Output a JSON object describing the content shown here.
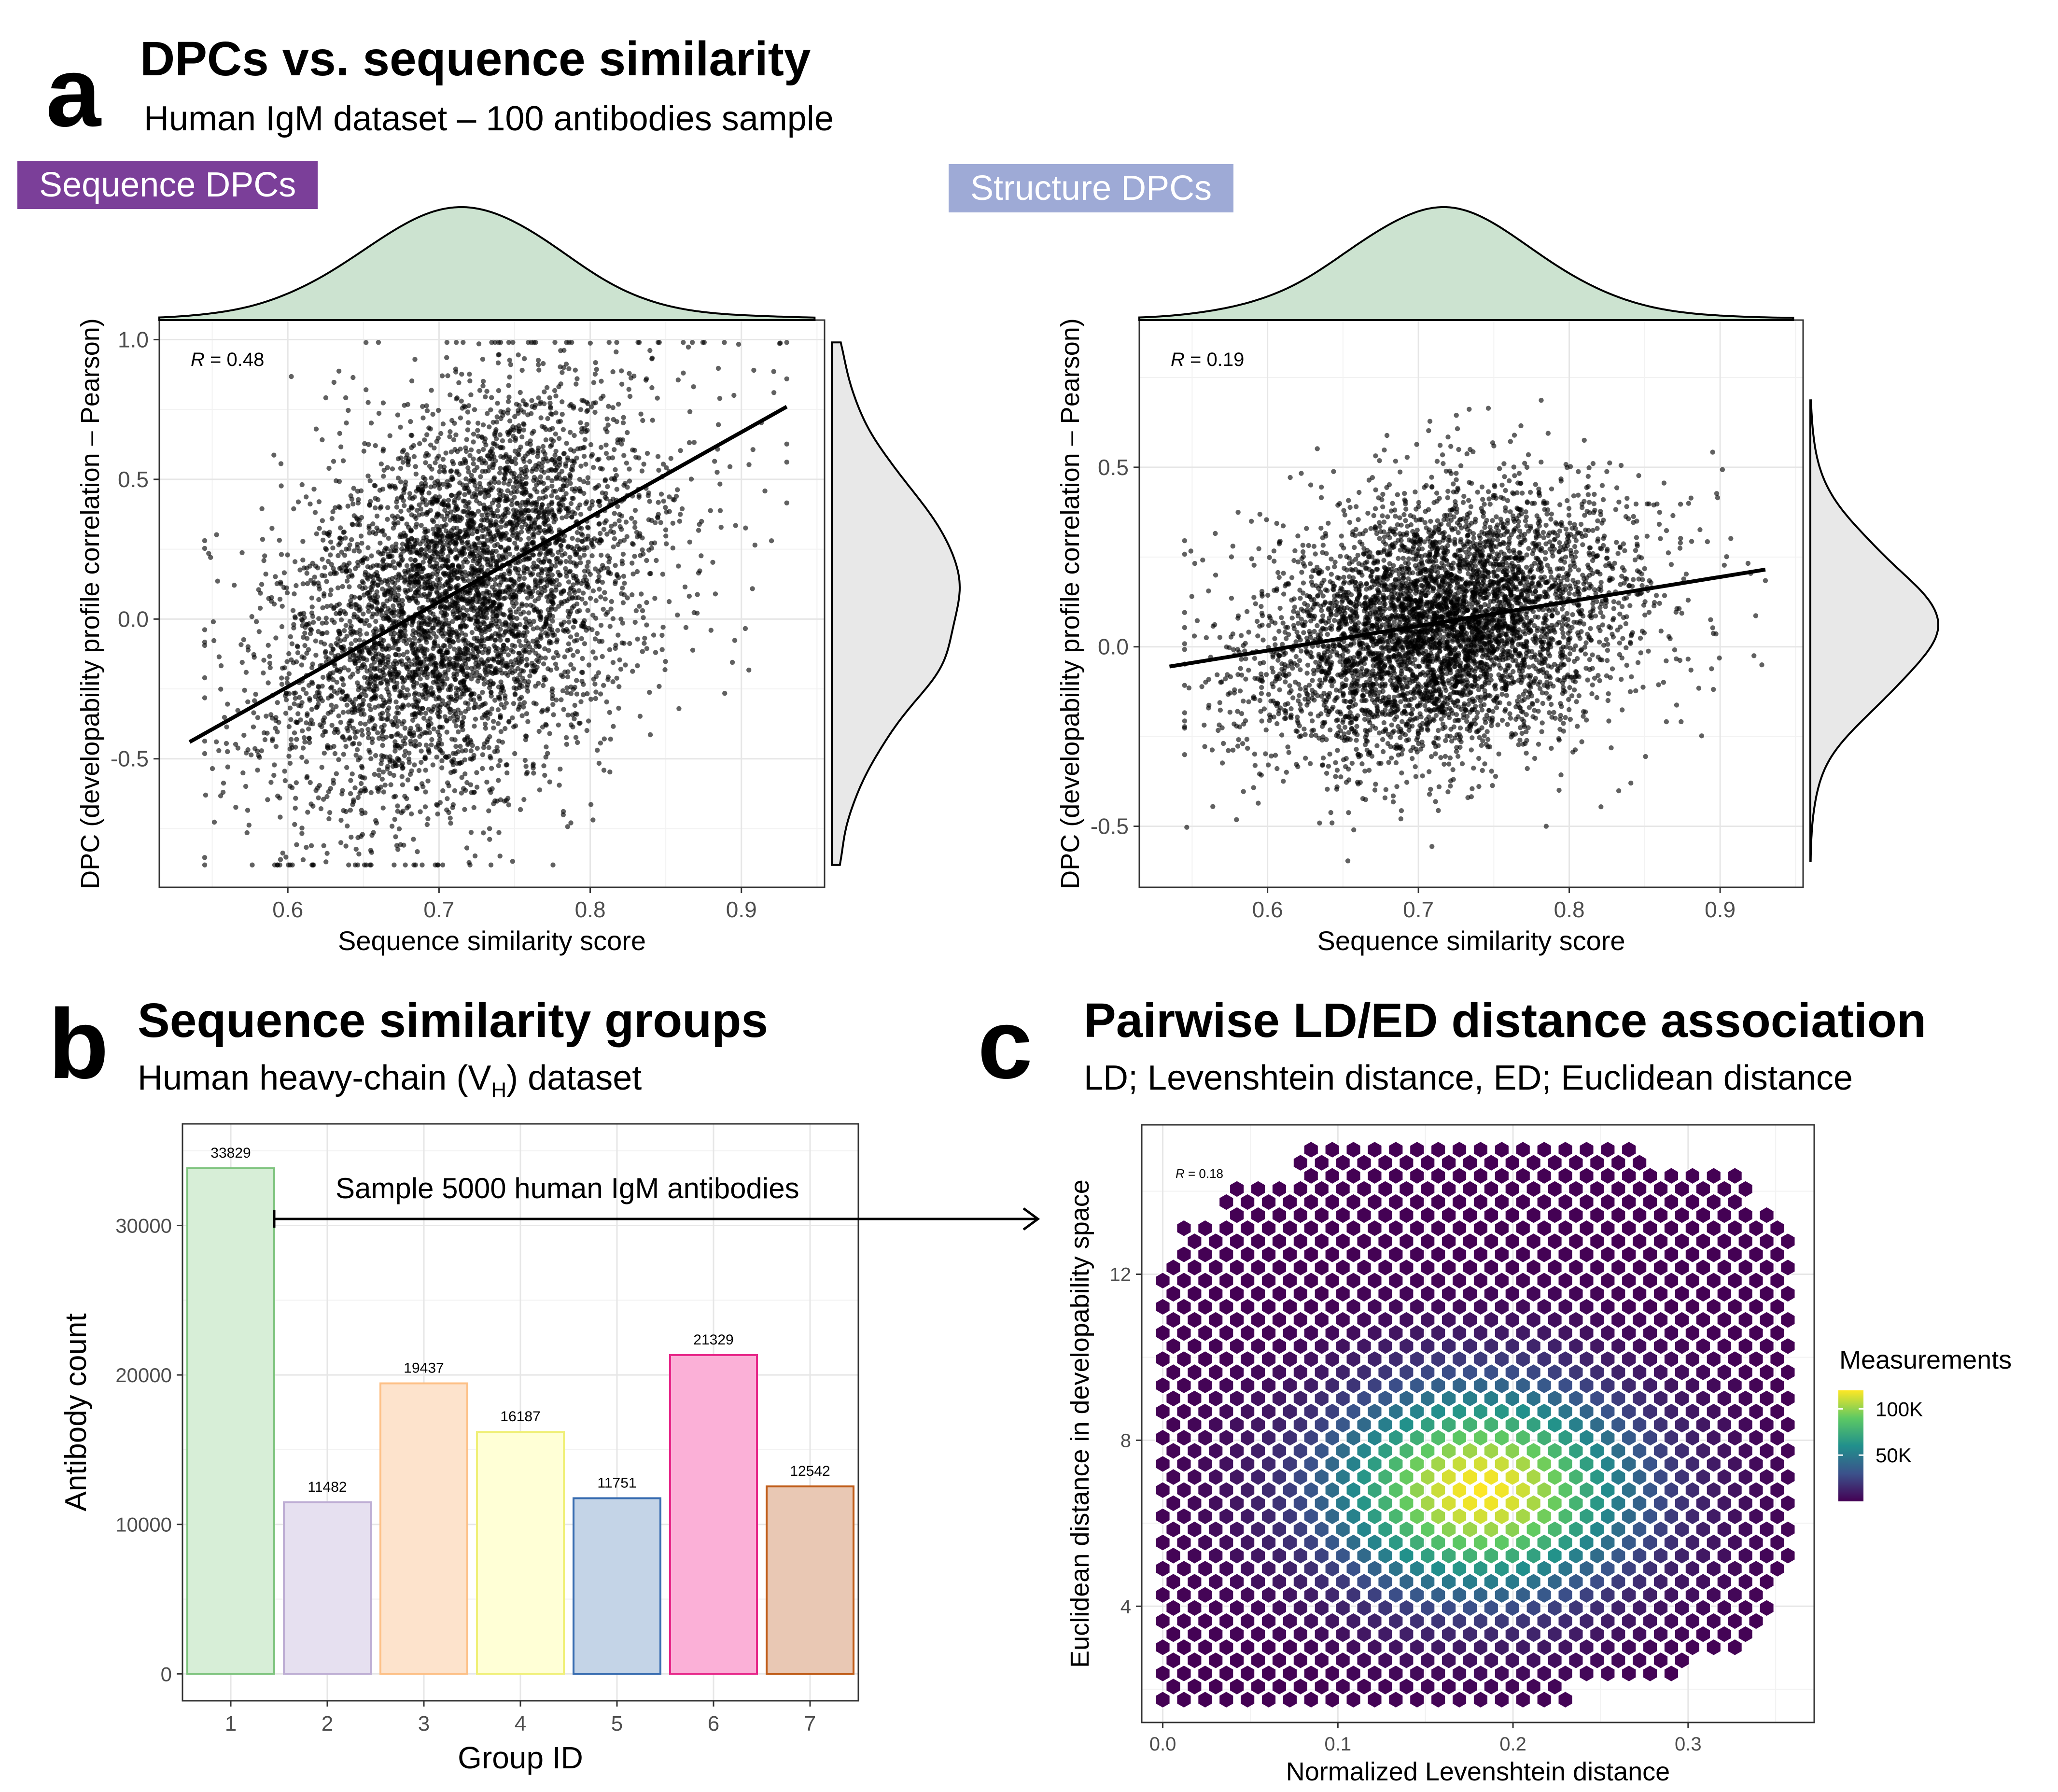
{
  "panel_a": {
    "letter": "a",
    "title": "DPCs vs. sequence similarity",
    "subtitle": "Human IgM dataset – 100 antibodies sample",
    "tag_seq": "Sequence DPCs",
    "tag_struct": "Structure DPCs"
  },
  "panel_b": {
    "letter": "b",
    "title": "Sequence similarity groups",
    "subtitle_pre": "Human heavy-chain (V",
    "subtitle_sub": "H",
    "subtitle_post": ") dataset",
    "arrow_label": "Sample 5000 human IgM antibodies"
  },
  "panel_c": {
    "letter": "c",
    "title": "Pairwise LD/ED distance association",
    "subtitle": "LD; Levenshtein distance, ED; Euclidean distance"
  },
  "chart_data": [
    {
      "id": "seq_scatter",
      "type": "scatter",
      "xlabel": "Sequence similarity score",
      "ylabel": "DPC (developability profile correlation – Pearson)",
      "xlim": [
        0.515,
        0.955
      ],
      "ylim": [
        -0.96,
        1.07
      ],
      "xticks": [
        0.6,
        0.7,
        0.8,
        0.9
      ],
      "yticks": [
        -0.5,
        0.0,
        0.5,
        1.0
      ],
      "xtick_labels": [
        "0.6",
        "0.7",
        "0.8",
        "0.9"
      ],
      "ytick_labels": [
        "-0.5",
        "0.0",
        "0.5",
        "1.0"
      ],
      "annotation_var": "R",
      "annotation_val": " = 0.48",
      "R": 0.48,
      "point_count": 5000,
      "regression": {
        "x": [
          0.535,
          0.93
        ],
        "y": [
          -0.44,
          0.76
        ]
      },
      "marginal": "density",
      "grid": true
    },
    {
      "id": "struct_scatter",
      "type": "scatter",
      "xlabel": "Sequence similarity score",
      "ylabel": "DPC (developability profile correlation – Pearson)",
      "xlim": [
        0.515,
        0.955
      ],
      "ylim": [
        -0.67,
        0.91
      ],
      "xticks": [
        0.6,
        0.7,
        0.8,
        0.9
      ],
      "yticks": [
        -0.5,
        0.0,
        0.5
      ],
      "xtick_labels": [
        "0.6",
        "0.7",
        "0.8",
        "0.9"
      ],
      "ytick_labels": [
        "-0.5",
        "0.0",
        "0.5"
      ],
      "annotation_var": "R",
      "annotation_val": " = 0.19",
      "R": 0.19,
      "point_count": 5000,
      "regression": {
        "x": [
          0.535,
          0.93
        ],
        "y": [
          -0.055,
          0.215
        ]
      },
      "marginal": "density",
      "grid": true
    },
    {
      "id": "group_bars",
      "type": "bar",
      "xlabel": "Group ID",
      "ylabel": "Antibody count",
      "categories": [
        "1",
        "2",
        "3",
        "4",
        "5",
        "6",
        "7"
      ],
      "values": [
        33829,
        11482,
        19437,
        16187,
        11751,
        21329,
        12542
      ],
      "value_labels": [
        "33829",
        "11482",
        "19437",
        "16187",
        "11751",
        "21329",
        "12542"
      ],
      "ylim": [
        -1800,
        36800
      ],
      "yticks": [
        0,
        10000,
        20000,
        30000
      ],
      "ytick_labels": [
        "0",
        "10000",
        "20000",
        "30000"
      ],
      "colors": {
        "fill": [
          "#d7eed7",
          "#e6e0f0",
          "#fde3cc",
          "#ffffd6",
          "#c4d4e7",
          "#fbb0d7",
          "#e9c8b4"
        ],
        "stroke": [
          "#7fc47f",
          "#beaed4",
          "#fdc086",
          "#f0f07a",
          "#386cb0",
          "#e7298a",
          "#bf5b17"
        ]
      },
      "grid": true
    },
    {
      "id": "hexbin",
      "type": "heatmap",
      "xlabel": "Normalized Levenshtein distance",
      "ylabel": "Euclidean distance in developability space",
      "xlim": [
        -0.012,
        0.372
      ],
      "ylim": [
        1.2,
        15.6
      ],
      "xticks": [
        0.0,
        0.1,
        0.2,
        0.3
      ],
      "yticks": [
        4,
        8,
        12
      ],
      "xtick_labels": [
        "0.0",
        "0.1",
        "0.2",
        "0.3"
      ],
      "ytick_labels": [
        "4",
        "8",
        "12"
      ],
      "annotation_var": "R",
      "annotation_val": " = 0.18",
      "R": 0.18,
      "legend_title": "Measurements",
      "legend_labels": [
        "100K",
        "50K"
      ],
      "legend_values": [
        100000,
        50000
      ],
      "max_count": 120000,
      "peak": {
        "x": 0.182,
        "y": 6.8
      },
      "palette": [
        "#440154",
        "#3b528b",
        "#21908c",
        "#5dc963",
        "#fde725"
      ],
      "grid": true
    }
  ],
  "colors": {
    "tag_seq_bg": "#7b3f99",
    "tag_struct_bg": "#9eaad6",
    "density_top": "#cce3d0",
    "density_right": "#e8e8e8"
  }
}
